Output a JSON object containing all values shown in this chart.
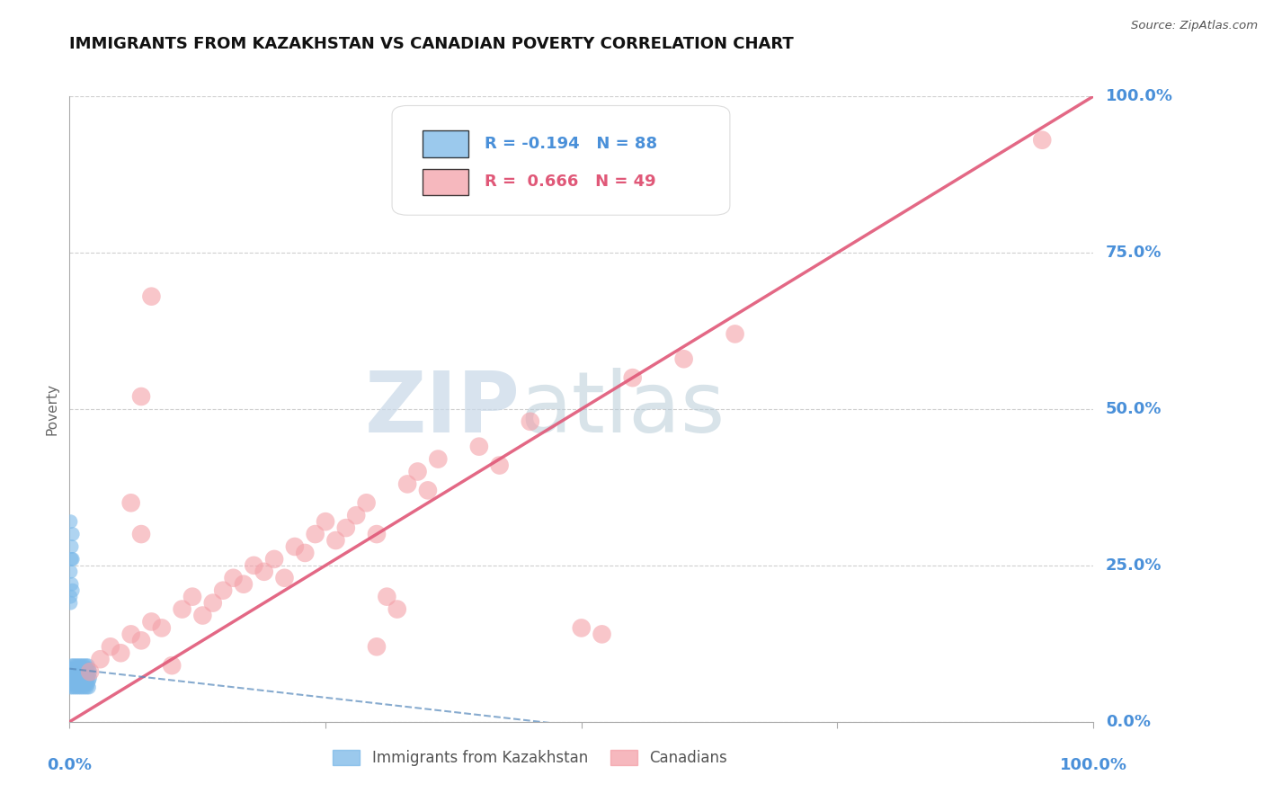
{
  "title": "IMMIGRANTS FROM KAZAKHSTAN VS CANADIAN POVERTY CORRELATION CHART",
  "source": "Source: ZipAtlas.com",
  "ylabel": "Poverty",
  "ylabel_ticks": [
    "0.0%",
    "25.0%",
    "50.0%",
    "75.0%",
    "100.0%"
  ],
  "watermark_zip": "ZIP",
  "watermark_atlas": "atlas",
  "legend_blue_label": "Immigrants from Kazakhstan",
  "legend_pink_label": "Canadians",
  "blue_R": -0.194,
  "blue_N": 88,
  "pink_R": 0.666,
  "pink_N": 49,
  "blue_color": "#7ab8e8",
  "pink_color": "#f4a0a8",
  "trend_blue_color": "#5588bb",
  "trend_pink_color": "#e05878",
  "background_color": "#ffffff",
  "blue_points": [
    [
      0.001,
      0.065
    ],
    [
      0.001,
      0.075
    ],
    [
      0.001,
      0.055
    ],
    [
      0.001,
      0.085
    ],
    [
      0.002,
      0.07
    ],
    [
      0.002,
      0.08
    ],
    [
      0.002,
      0.06
    ],
    [
      0.002,
      0.09
    ],
    [
      0.003,
      0.075
    ],
    [
      0.003,
      0.065
    ],
    [
      0.003,
      0.085
    ],
    [
      0.003,
      0.055
    ],
    [
      0.004,
      0.07
    ],
    [
      0.004,
      0.08
    ],
    [
      0.004,
      0.06
    ],
    [
      0.004,
      0.09
    ],
    [
      0.005,
      0.075
    ],
    [
      0.005,
      0.065
    ],
    [
      0.005,
      0.085
    ],
    [
      0.005,
      0.055
    ],
    [
      0.006,
      0.07
    ],
    [
      0.006,
      0.08
    ],
    [
      0.006,
      0.06
    ],
    [
      0.006,
      0.09
    ],
    [
      0.007,
      0.075
    ],
    [
      0.007,
      0.065
    ],
    [
      0.007,
      0.085
    ],
    [
      0.007,
      0.055
    ],
    [
      0.008,
      0.07
    ],
    [
      0.008,
      0.08
    ],
    [
      0.008,
      0.06
    ],
    [
      0.008,
      0.09
    ],
    [
      0.009,
      0.075
    ],
    [
      0.009,
      0.065
    ],
    [
      0.009,
      0.085
    ],
    [
      0.009,
      0.055
    ],
    [
      0.01,
      0.07
    ],
    [
      0.01,
      0.08
    ],
    [
      0.01,
      0.06
    ],
    [
      0.01,
      0.09
    ],
    [
      0.011,
      0.075
    ],
    [
      0.011,
      0.065
    ],
    [
      0.011,
      0.085
    ],
    [
      0.011,
      0.055
    ],
    [
      0.012,
      0.07
    ],
    [
      0.012,
      0.08
    ],
    [
      0.012,
      0.06
    ],
    [
      0.012,
      0.09
    ],
    [
      0.013,
      0.075
    ],
    [
      0.013,
      0.065
    ],
    [
      0.013,
      0.085
    ],
    [
      0.013,
      0.055
    ],
    [
      0.014,
      0.07
    ],
    [
      0.014,
      0.08
    ],
    [
      0.014,
      0.06
    ],
    [
      0.014,
      0.09
    ],
    [
      0.015,
      0.075
    ],
    [
      0.015,
      0.065
    ],
    [
      0.015,
      0.085
    ],
    [
      0.015,
      0.055
    ],
    [
      0.016,
      0.07
    ],
    [
      0.016,
      0.08
    ],
    [
      0.016,
      0.06
    ],
    [
      0.016,
      0.09
    ],
    [
      0.017,
      0.075
    ],
    [
      0.017,
      0.065
    ],
    [
      0.017,
      0.085
    ],
    [
      0.017,
      0.055
    ],
    [
      0.018,
      0.07
    ],
    [
      0.018,
      0.08
    ],
    [
      0.018,
      0.06
    ],
    [
      0.018,
      0.09
    ],
    [
      0.019,
      0.075
    ],
    [
      0.019,
      0.065
    ],
    [
      0.019,
      0.085
    ],
    [
      0.019,
      0.055
    ],
    [
      0.02,
      0.07
    ],
    [
      0.02,
      0.08
    ],
    [
      0.001,
      0.24
    ],
    [
      0.002,
      0.22
    ],
    [
      0.003,
      0.26
    ],
    [
      0.001,
      0.2
    ],
    [
      0.002,
      0.28
    ],
    [
      0.003,
      0.3
    ],
    [
      0.001,
      0.32
    ],
    [
      0.002,
      0.26
    ],
    [
      0.003,
      0.21
    ],
    [
      0.001,
      0.19
    ]
  ],
  "pink_points": [
    [
      0.02,
      0.08
    ],
    [
      0.03,
      0.1
    ],
    [
      0.04,
      0.12
    ],
    [
      0.05,
      0.11
    ],
    [
      0.06,
      0.14
    ],
    [
      0.07,
      0.13
    ],
    [
      0.08,
      0.16
    ],
    [
      0.09,
      0.15
    ],
    [
      0.1,
      0.09
    ],
    [
      0.11,
      0.18
    ],
    [
      0.12,
      0.2
    ],
    [
      0.13,
      0.17
    ],
    [
      0.14,
      0.19
    ],
    [
      0.07,
      0.52
    ],
    [
      0.08,
      0.68
    ],
    [
      0.15,
      0.21
    ],
    [
      0.16,
      0.23
    ],
    [
      0.17,
      0.22
    ],
    [
      0.18,
      0.25
    ],
    [
      0.19,
      0.24
    ],
    [
      0.2,
      0.26
    ],
    [
      0.21,
      0.23
    ],
    [
      0.22,
      0.28
    ],
    [
      0.06,
      0.35
    ],
    [
      0.07,
      0.3
    ],
    [
      0.23,
      0.27
    ],
    [
      0.24,
      0.3
    ],
    [
      0.25,
      0.32
    ],
    [
      0.26,
      0.29
    ],
    [
      0.27,
      0.31
    ],
    [
      0.28,
      0.33
    ],
    [
      0.29,
      0.35
    ],
    [
      0.3,
      0.12
    ],
    [
      0.31,
      0.2
    ],
    [
      0.32,
      0.18
    ],
    [
      0.33,
      0.38
    ],
    [
      0.34,
      0.4
    ],
    [
      0.35,
      0.37
    ],
    [
      0.36,
      0.42
    ],
    [
      0.3,
      0.3
    ],
    [
      0.4,
      0.44
    ],
    [
      0.42,
      0.41
    ],
    [
      0.45,
      0.48
    ],
    [
      0.5,
      0.15
    ],
    [
      0.52,
      0.14
    ],
    [
      0.55,
      0.55
    ],
    [
      0.6,
      0.58
    ],
    [
      0.65,
      0.62
    ],
    [
      0.95,
      0.93
    ]
  ]
}
